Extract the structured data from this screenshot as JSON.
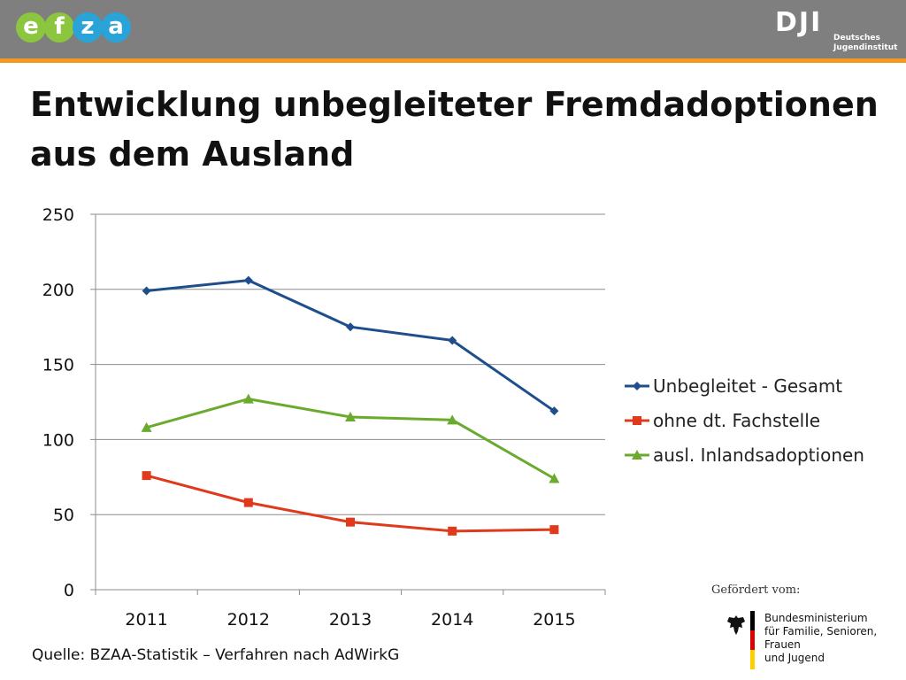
{
  "header": {
    "logo_efza": [
      {
        "letter": "e",
        "color": "#8cc63f"
      },
      {
        "letter": "f",
        "color": "#8cc63f"
      },
      {
        "letter": "z",
        "color": "#2aa3d8"
      },
      {
        "letter": "a",
        "color": "#2aa3d8"
      }
    ],
    "logo_dji_mark": "DJI",
    "logo_dji_text": [
      "Deutsches",
      "Jugendinstitut"
    ],
    "stripe_color": "#f29a1f",
    "background_color": "#7f7f7f"
  },
  "title": {
    "line1": "Entwicklung unbegleiteter Fremdadoptionen",
    "line2": "aus dem Ausland"
  },
  "chart_data": {
    "type": "line",
    "categories": [
      "2011",
      "2012",
      "2013",
      "2014",
      "2015"
    ],
    "series": [
      {
        "name": "Unbegleitet - Gesamt",
        "values": [
          199,
          206,
          175,
          166,
          119
        ],
        "color": "#1f4e8c",
        "marker": "diamond"
      },
      {
        "name": "ohne dt. Fachstelle",
        "values": [
          76,
          58,
          45,
          39,
          40
        ],
        "color": "#e0391c",
        "marker": "square"
      },
      {
        "name": "ausl. Inlandsadoptionen",
        "values": [
          108,
          127,
          115,
          113,
          74
        ],
        "color": "#6aab2e",
        "marker": "triangle"
      }
    ],
    "ylim": [
      0,
      250
    ],
    "yticks": [
      0,
      50,
      100,
      150,
      200,
      250
    ],
    "grid": true,
    "legend_position": "right"
  },
  "source": "Quelle: BZAA-Statistik – Verfahren nach AdWirkG",
  "sponsor": {
    "label": "Gefördert vom:",
    "ministry_lines": [
      "Bundesministerium",
      "für Familie, Senioren, Frauen",
      "und Jugend"
    ],
    "flag_colors": [
      "#000000",
      "#dd0000",
      "#ffce00"
    ]
  }
}
